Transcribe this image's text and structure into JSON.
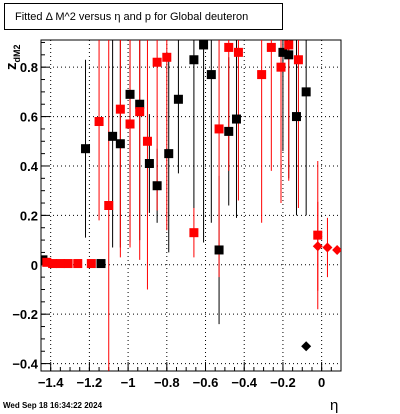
{
  "chart_data": {
    "type": "scatter",
    "title": "Fitted Δ M^2 versus η and p for Global deuteron",
    "xlabel": "η",
    "ylabel_main": "z",
    "ylabel_sub": "dM2",
    "xlim": [
      -1.45,
      0.1
    ],
    "ylim": [
      -0.43,
      0.91
    ],
    "x_ticks": [
      {
        "value": -1.4,
        "label": "−1.4"
      },
      {
        "value": -1.2,
        "label": "−1.2"
      },
      {
        "value": -1.0,
        "label": "−1"
      },
      {
        "value": -0.8,
        "label": "−0.8"
      },
      {
        "value": -0.6,
        "label": "−0.6"
      },
      {
        "value": -0.4,
        "label": "−0.4"
      },
      {
        "value": -0.2,
        "label": "−0.2"
      },
      {
        "value": 0.0,
        "label": "0"
      }
    ],
    "y_ticks": [
      {
        "value": -0.4,
        "label": "−0.4"
      },
      {
        "value": -0.2,
        "label": "−0.2"
      },
      {
        "value": 0.0,
        "label": "0"
      },
      {
        "value": 0.2,
        "label": "0.2"
      },
      {
        "value": 0.4,
        "label": "0.4"
      },
      {
        "value": 0.6,
        "label": "0.6"
      },
      {
        "value": 0.8,
        "label": "0.8"
      }
    ],
    "grid": true,
    "footer": "Wed Sep 18 16:34:22 2024",
    "series": [
      {
        "color": "#000000",
        "marker": "square",
        "points": [
          {
            "x": -1.44,
            "y": 0.02,
            "elo": 0.0,
            "ehi": 0.0
          },
          {
            "x": -1.22,
            "y": 0.47,
            "elo": 0.36,
            "ehi": 0.36
          },
          {
            "x": -1.14,
            "y": 0.005,
            "elo": 0.0,
            "ehi": 0.0
          },
          {
            "x": -1.08,
            "y": 0.52,
            "elo": 0.45,
            "ehi": 0.45
          },
          {
            "x": -1.04,
            "y": 0.49,
            "elo": 0.42,
            "ehi": 0.42
          },
          {
            "x": -0.99,
            "y": 0.69,
            "elo": 0.6,
            "ehi": 0.6
          },
          {
            "x": -0.94,
            "y": 0.65,
            "elo": 0.55,
            "ehi": 0.55
          },
          {
            "x": -0.89,
            "y": 0.41,
            "elo": 0.2,
            "ehi": 0.2
          },
          {
            "x": -0.85,
            "y": 0.32,
            "elo": 0.15,
            "ehi": 0.15
          },
          {
            "x": -0.79,
            "y": 0.45,
            "elo": 0.4,
            "ehi": 0.4
          },
          {
            "x": -0.74,
            "y": 0.67,
            "elo": 0.3,
            "ehi": 0.3
          },
          {
            "x": -0.66,
            "y": 0.83,
            "elo": 0.6,
            "ehi": 0.6
          },
          {
            "x": -0.61,
            "y": 0.89,
            "elo": 0.8,
            "ehi": 0.8
          },
          {
            "x": -0.57,
            "y": 0.77,
            "elo": 0.6,
            "ehi": 0.6
          },
          {
            "x": -0.53,
            "y": 0.06,
            "elo": 0.3,
            "ehi": 0.3
          },
          {
            "x": -0.48,
            "y": 0.54,
            "elo": 0.3,
            "ehi": 0.3
          },
          {
            "x": -0.44,
            "y": 0.59,
            "elo": 0.4,
            "ehi": 0.4
          },
          {
            "x": -0.2,
            "y": 0.86,
            "elo": 0.4,
            "ehi": 0.4
          },
          {
            "x": -0.17,
            "y": 0.85,
            "elo": 0.5,
            "ehi": 0.5
          },
          {
            "x": -0.13,
            "y": 0.6,
            "elo": 0.4,
            "ehi": 0.4
          },
          {
            "x": -0.08,
            "y": 0.7,
            "elo": 0.5,
            "ehi": 0.5
          }
        ]
      },
      {
        "color": "#ff0000",
        "marker": "square",
        "points": [
          {
            "x": -1.42,
            "y": 0.01,
            "elo": 0.0,
            "ehi": 0.0
          },
          {
            "x": -1.39,
            "y": 0.005,
            "elo": 0.0,
            "ehi": 0.0
          },
          {
            "x": -1.35,
            "y": 0.005,
            "elo": 0.0,
            "ehi": 0.0
          },
          {
            "x": -1.31,
            "y": 0.005,
            "elo": 0.0,
            "ehi": 0.0
          },
          {
            "x": -1.26,
            "y": 0.005,
            "elo": 0.0,
            "ehi": 0.0
          },
          {
            "x": -1.19,
            "y": 0.005,
            "elo": 0.0,
            "ehi": 0.0
          },
          {
            "x": -1.15,
            "y": 0.58,
            "elo": 0.4,
            "ehi": 0.4
          },
          {
            "x": -1.1,
            "y": 0.24,
            "elo": 0.8,
            "ehi": 0.8
          },
          {
            "x": -1.04,
            "y": 0.63,
            "elo": 0.6,
            "ehi": 0.6
          },
          {
            "x": -0.99,
            "y": 0.57,
            "elo": 0.5,
            "ehi": 0.5
          },
          {
            "x": -0.94,
            "y": 0.62,
            "elo": 0.6,
            "ehi": 0.6
          },
          {
            "x": -0.9,
            "y": 0.5,
            "elo": 0.6,
            "ehi": 0.6
          },
          {
            "x": -0.85,
            "y": 0.82,
            "elo": 0.6,
            "ehi": 0.6
          },
          {
            "x": -0.8,
            "y": 0.84,
            "elo": 0.7,
            "ehi": 0.7
          },
          {
            "x": -0.66,
            "y": 0.13,
            "elo": 0.1,
            "ehi": 0.1
          },
          {
            "x": -0.53,
            "y": 0.55,
            "elo": 0.6,
            "ehi": 0.6
          },
          {
            "x": -0.48,
            "y": 0.88,
            "elo": 0.5,
            "ehi": 0.5
          },
          {
            "x": -0.43,
            "y": 0.86,
            "elo": 0.6,
            "ehi": 0.6
          },
          {
            "x": -0.31,
            "y": 0.77,
            "elo": 0.6,
            "ehi": 0.6
          },
          {
            "x": -0.26,
            "y": 0.88,
            "elo": 0.5,
            "ehi": 0.5
          },
          {
            "x": -0.21,
            "y": 0.8,
            "elo": 0.55,
            "ehi": 0.55
          },
          {
            "x": -0.17,
            "y": 0.89,
            "elo": 0.55,
            "ehi": 0.55
          },
          {
            "x": -0.12,
            "y": 0.83,
            "elo": 0.6,
            "ehi": 0.6
          },
          {
            "x": -0.02,
            "y": 0.12,
            "elo": 0.3,
            "ehi": 0.3
          }
        ]
      },
      {
        "color": "#ff0000",
        "marker": "diamond",
        "points": [
          {
            "x": -0.02,
            "y": 0.075,
            "elo": 0.18,
            "ehi": 0.18
          },
          {
            "x": 0.03,
            "y": 0.07,
            "elo": 0.12,
            "ehi": 0.12
          },
          {
            "x": 0.08,
            "y": 0.06,
            "elo": 0.0,
            "ehi": 0.0
          }
        ]
      },
      {
        "color": "#000000",
        "marker": "diamond",
        "points": [
          {
            "x": -0.08,
            "y": -0.33,
            "elo": 0.0,
            "ehi": 0.0
          }
        ]
      }
    ]
  }
}
